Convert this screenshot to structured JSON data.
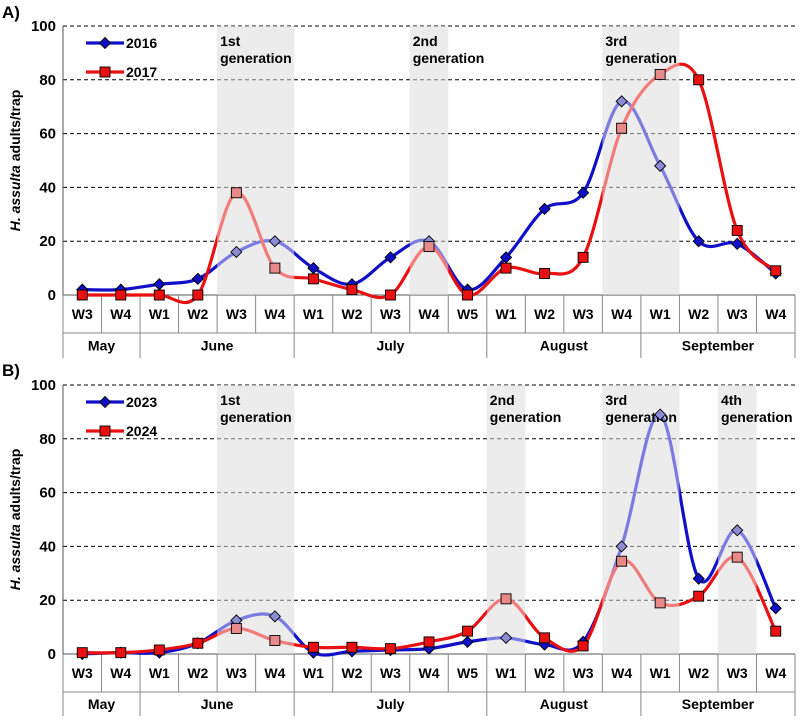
{
  "chart_data": [
    {
      "type": "line",
      "panel_label": "A)",
      "ylabel_italic": "H. assulta",
      "ylabel_rest": " adults/trap",
      "ylim": [
        0,
        100
      ],
      "yticks": [
        0,
        20,
        40,
        60,
        80,
        100
      ],
      "grid": "horizontal dashed",
      "legend_placement": "top-left",
      "weeks": [
        "W3",
        "W4",
        "W1",
        "W2",
        "W3",
        "W4",
        "W1",
        "W2",
        "W3",
        "W4",
        "W5",
        "W1",
        "W2",
        "W3",
        "W4",
        "W1",
        "W2",
        "W3",
        "W4"
      ],
      "months": [
        {
          "label": "May",
          "start": 0,
          "count": 2
        },
        {
          "label": "June",
          "start": 2,
          "count": 4
        },
        {
          "label": "July",
          "start": 6,
          "count": 5
        },
        {
          "label": "August",
          "start": 11,
          "count": 4
        },
        {
          "label": "September",
          "start": 15,
          "count": 4
        }
      ],
      "generations": [
        {
          "label1": "1st",
          "label2": "generation",
          "from": 4,
          "to": 5
        },
        {
          "label1": "2nd",
          "label2": "generation",
          "from": 9,
          "to": 9
        },
        {
          "label1": "3rd",
          "label2": "generation",
          "from": 14,
          "to": 15
        }
      ],
      "series": [
        {
          "name": "2016",
          "color": "#1010c8",
          "marker": "diamond",
          "values": [
            2,
            2,
            4,
            6,
            16,
            20,
            10,
            4,
            14,
            20,
            2,
            14,
            32,
            38,
            72,
            48,
            20,
            19,
            8
          ]
        },
        {
          "name": "2017",
          "color": "#e81010",
          "marker": "square",
          "values": [
            0,
            0,
            0,
            0,
            38,
            10,
            6,
            2,
            0,
            18,
            0,
            10,
            8,
            14,
            62,
            82,
            80,
            24,
            9
          ]
        }
      ]
    },
    {
      "type": "line",
      "panel_label": "B)",
      "ylabel_italic": "H. assulta",
      "ylabel_rest": " adults/trap",
      "ylim": [
        0,
        100
      ],
      "yticks": [
        0,
        20,
        40,
        60,
        80,
        100
      ],
      "grid": "horizontal dashed",
      "legend_placement": "top-left",
      "weeks": [
        "W3",
        "W4",
        "W1",
        "W2",
        "W3",
        "W4",
        "W1",
        "W2",
        "W3",
        "W4",
        "W5",
        "W1",
        "W2",
        "W3",
        "W4",
        "W1",
        "W2",
        "W3",
        "W4"
      ],
      "months": [
        {
          "label": "May",
          "start": 0,
          "count": 2
        },
        {
          "label": "June",
          "start": 2,
          "count": 4
        },
        {
          "label": "July",
          "start": 6,
          "count": 5
        },
        {
          "label": "August",
          "start": 11,
          "count": 4
        },
        {
          "label": "September",
          "start": 15,
          "count": 4
        }
      ],
      "generations": [
        {
          "label1": "1st",
          "label2": "generation",
          "from": 4,
          "to": 5
        },
        {
          "label1": "2nd",
          "label2": "generation",
          "from": 11,
          "to": 11
        },
        {
          "label1": "3rd",
          "label2": "generation",
          "from": 14,
          "to": 15
        },
        {
          "label1": "4th",
          "label2": "generation",
          "from": 17,
          "to": 17
        }
      ],
      "series": [
        {
          "name": "2023",
          "color": "#1010c8",
          "marker": "diamond",
          "values": [
            0,
            0.5,
            0.5,
            4,
            12.5,
            14,
            0.5,
            1,
            1.5,
            2,
            4.5,
            6,
            3.5,
            4.5,
            40,
            89,
            28,
            46,
            17
          ]
        },
        {
          "name": "2024",
          "color": "#e81010",
          "marker": "square",
          "values": [
            0.5,
            0.5,
            1.5,
            4,
            9.5,
            5,
            2.5,
            2.5,
            2,
            4.5,
            8.5,
            20.5,
            6,
            3,
            34.5,
            19,
            21.5,
            36,
            8.5
          ]
        }
      ]
    }
  ]
}
